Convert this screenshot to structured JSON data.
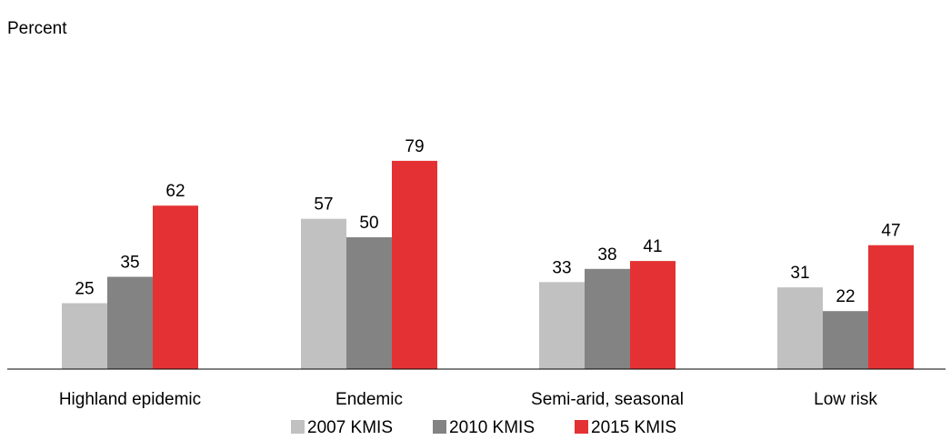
{
  "chart_data": {
    "type": "bar",
    "ylabel": "Percent",
    "categories": [
      "Highland epidemic",
      "Endemic",
      "Semi-arid, seasonal",
      "Low risk"
    ],
    "series": [
      {
        "name": "2007 KMIS",
        "color": "#c1c1c1",
        "values": [
          25,
          57,
          33,
          31
        ]
      },
      {
        "name": "2010 KMIS",
        "color": "#838383",
        "values": [
          35,
          50,
          38,
          22
        ]
      },
      {
        "name": "2015 KMIS",
        "color": "#e43234",
        "values": [
          62,
          79,
          41,
          47
        ]
      }
    ],
    "ylim": [
      0,
      100
    ],
    "grid": false,
    "legend_position": "bottom-center",
    "data_labels": true
  }
}
